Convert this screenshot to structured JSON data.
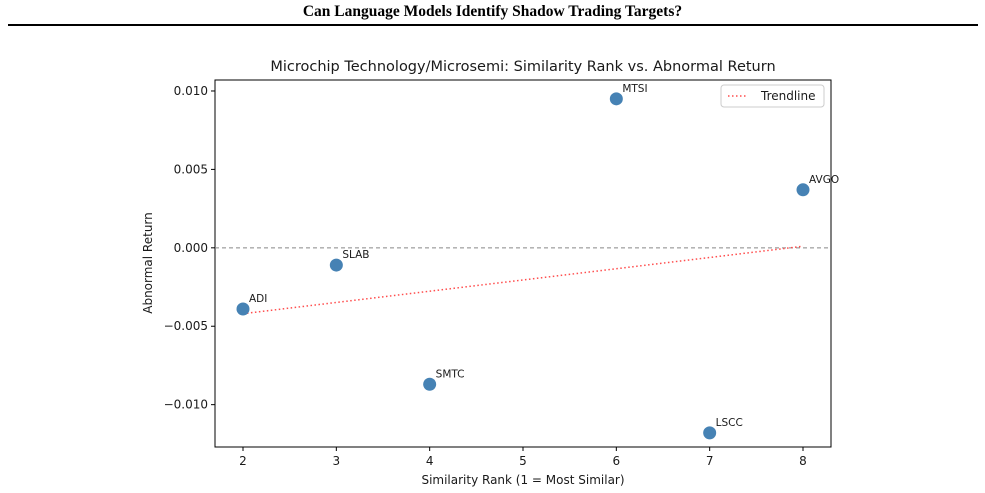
{
  "page": {
    "header_title": "Can Language Models Identify Shadow Trading Targets?"
  },
  "chart_data": {
    "type": "scatter",
    "title": "Microchip Technology/Microsemi: Similarity Rank vs. Abnormal Return",
    "xlabel": "Similarity Rank (1 = Most Similar)",
    "ylabel": "Abnormal Return",
    "xlim": [
      1.7,
      8.3
    ],
    "ylim": [
      -0.0127,
      0.0107
    ],
    "xticks": [
      2,
      3,
      4,
      5,
      6,
      7,
      8
    ],
    "xtick_labels": [
      "2",
      "3",
      "4",
      "5",
      "6",
      "7",
      "8"
    ],
    "yticks": [
      0.01,
      0.005,
      0.0,
      -0.005,
      -0.01
    ],
    "ytick_labels": [
      "0.010",
      "0.005",
      "0.000",
      "−0.005",
      "−0.010"
    ],
    "points": [
      {
        "label": "ADI",
        "x": 2,
        "y": -0.0039
      },
      {
        "label": "SLAB",
        "x": 3,
        "y": -0.0011
      },
      {
        "label": "SMTC",
        "x": 4,
        "y": -0.0087
      },
      {
        "label": "MTSI",
        "x": 6,
        "y": 0.0095
      },
      {
        "label": "LSCC",
        "x": 7,
        "y": -0.0118
      },
      {
        "label": "AVGO",
        "x": 8,
        "y": 0.0037
      }
    ],
    "trendline": {
      "name": "Trendline",
      "x": [
        2,
        8
      ],
      "y": [
        -0.0042,
        0.0001
      ]
    },
    "reference_line_y": 0.0,
    "legend": {
      "position": "top-right",
      "entries": [
        "Trendline"
      ]
    },
    "colors": {
      "points": "#4682b4",
      "trendline": "#ff4d4d",
      "reference": "#888888"
    },
    "grid": false
  }
}
